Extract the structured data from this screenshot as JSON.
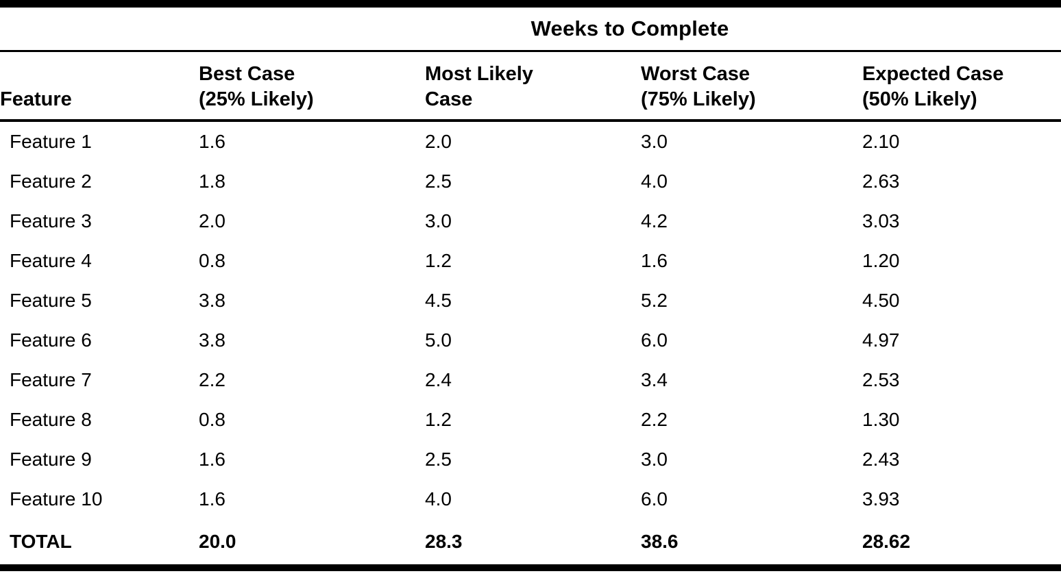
{
  "page": {
    "background_color": "#ffffff",
    "text_color": "#000000"
  },
  "table": {
    "spanning_header": "Weeks to Complete",
    "columns": [
      {
        "label": "Feature",
        "sublabel": ""
      },
      {
        "label": "Best Case",
        "sublabel": "(25% Likely)"
      },
      {
        "label": "Most Likely",
        "sublabel": "Case"
      },
      {
        "label": "Worst Case",
        "sublabel": "(75% Likely)"
      },
      {
        "label": "Expected Case",
        "sublabel": "(50% Likely)"
      }
    ],
    "rows": [
      {
        "feature": "Feature 1",
        "best": "1.6",
        "likely": "2.0",
        "worst": "3.0",
        "expected": "2.10"
      },
      {
        "feature": "Feature 2",
        "best": "1.8",
        "likely": "2.5",
        "worst": "4.0",
        "expected": "2.63"
      },
      {
        "feature": "Feature 3",
        "best": "2.0",
        "likely": "3.0",
        "worst": "4.2",
        "expected": "3.03"
      },
      {
        "feature": "Feature 4",
        "best": "0.8",
        "likely": "1.2",
        "worst": "1.6",
        "expected": "1.20"
      },
      {
        "feature": "Feature 5",
        "best": "3.8",
        "likely": "4.5",
        "worst": "5.2",
        "expected": "4.50"
      },
      {
        "feature": "Feature 6",
        "best": "3.8",
        "likely": "5.0",
        "worst": "6.0",
        "expected": "4.97"
      },
      {
        "feature": "Feature 7",
        "best": "2.2",
        "likely": "2.4",
        "worst": "3.4",
        "expected": "2.53"
      },
      {
        "feature": "Feature 8",
        "best": "0.8",
        "likely": "1.2",
        "worst": "2.2",
        "expected": "1.30"
      },
      {
        "feature": "Feature 9",
        "best": "1.6",
        "likely": "2.5",
        "worst": "3.0",
        "expected": "2.43"
      },
      {
        "feature": "Feature 10",
        "best": "1.6",
        "likely": "4.0",
        "worst": "6.0",
        "expected": "3.93"
      }
    ],
    "total": {
      "feature": "TOTAL",
      "best": "20.0",
      "likely": "28.3",
      "worst": "38.6",
      "expected": "28.62"
    }
  }
}
